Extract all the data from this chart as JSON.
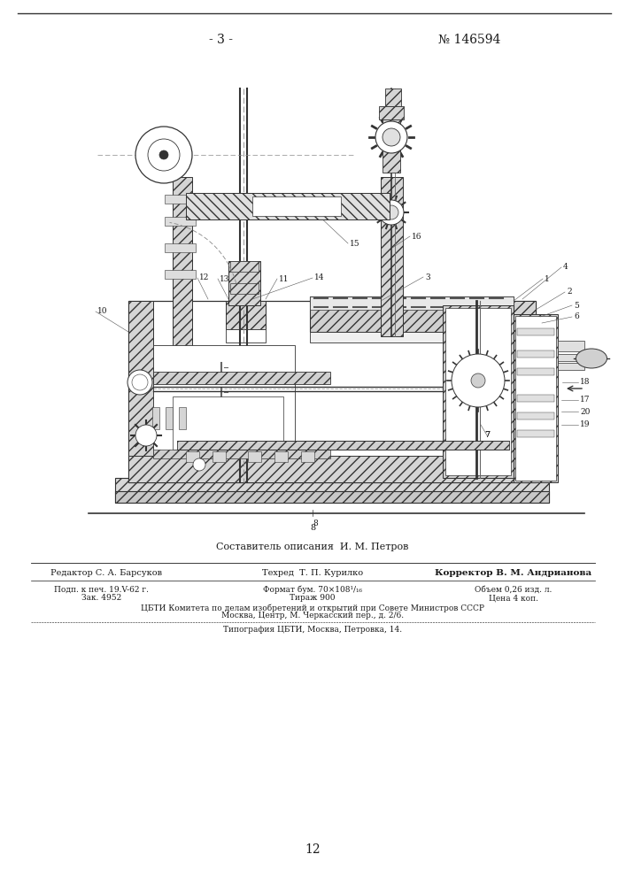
{
  "page_number_left": "- 3 -",
  "page_number_right": "№ 146594",
  "composer_line": "Составитель описания  И. М. Петров",
  "editor_label": "Редактор С. А. Барсуков",
  "techred_label": "Техред  Т. П. Курилко",
  "corrector_label": "Корректор В. М. Андрианова",
  "line1_col1": "Подп. к печ. 19.V-62 г.",
  "line1_col2": "Формат бум. 70×108¹/₁₆",
  "line1_col3": "Объем 0,26 изд. л.",
  "line2_col1": "Зак. 4952",
  "line2_col2": "Тираж 900",
  "line2_col3": "Цена 4 коп.",
  "line3": "ЦБТИ Комитета по делам изобретений и открытий при Совете Министров СССР",
  "line4": "Москва, Центр, М. Черкасский пер., д. 2/6.",
  "line5": "Типография ЦБТИ, Москва, Петровка, 14.",
  "bottom_page": "12",
  "bg_color": "#ffffff",
  "text_color": "#1a1a1a"
}
